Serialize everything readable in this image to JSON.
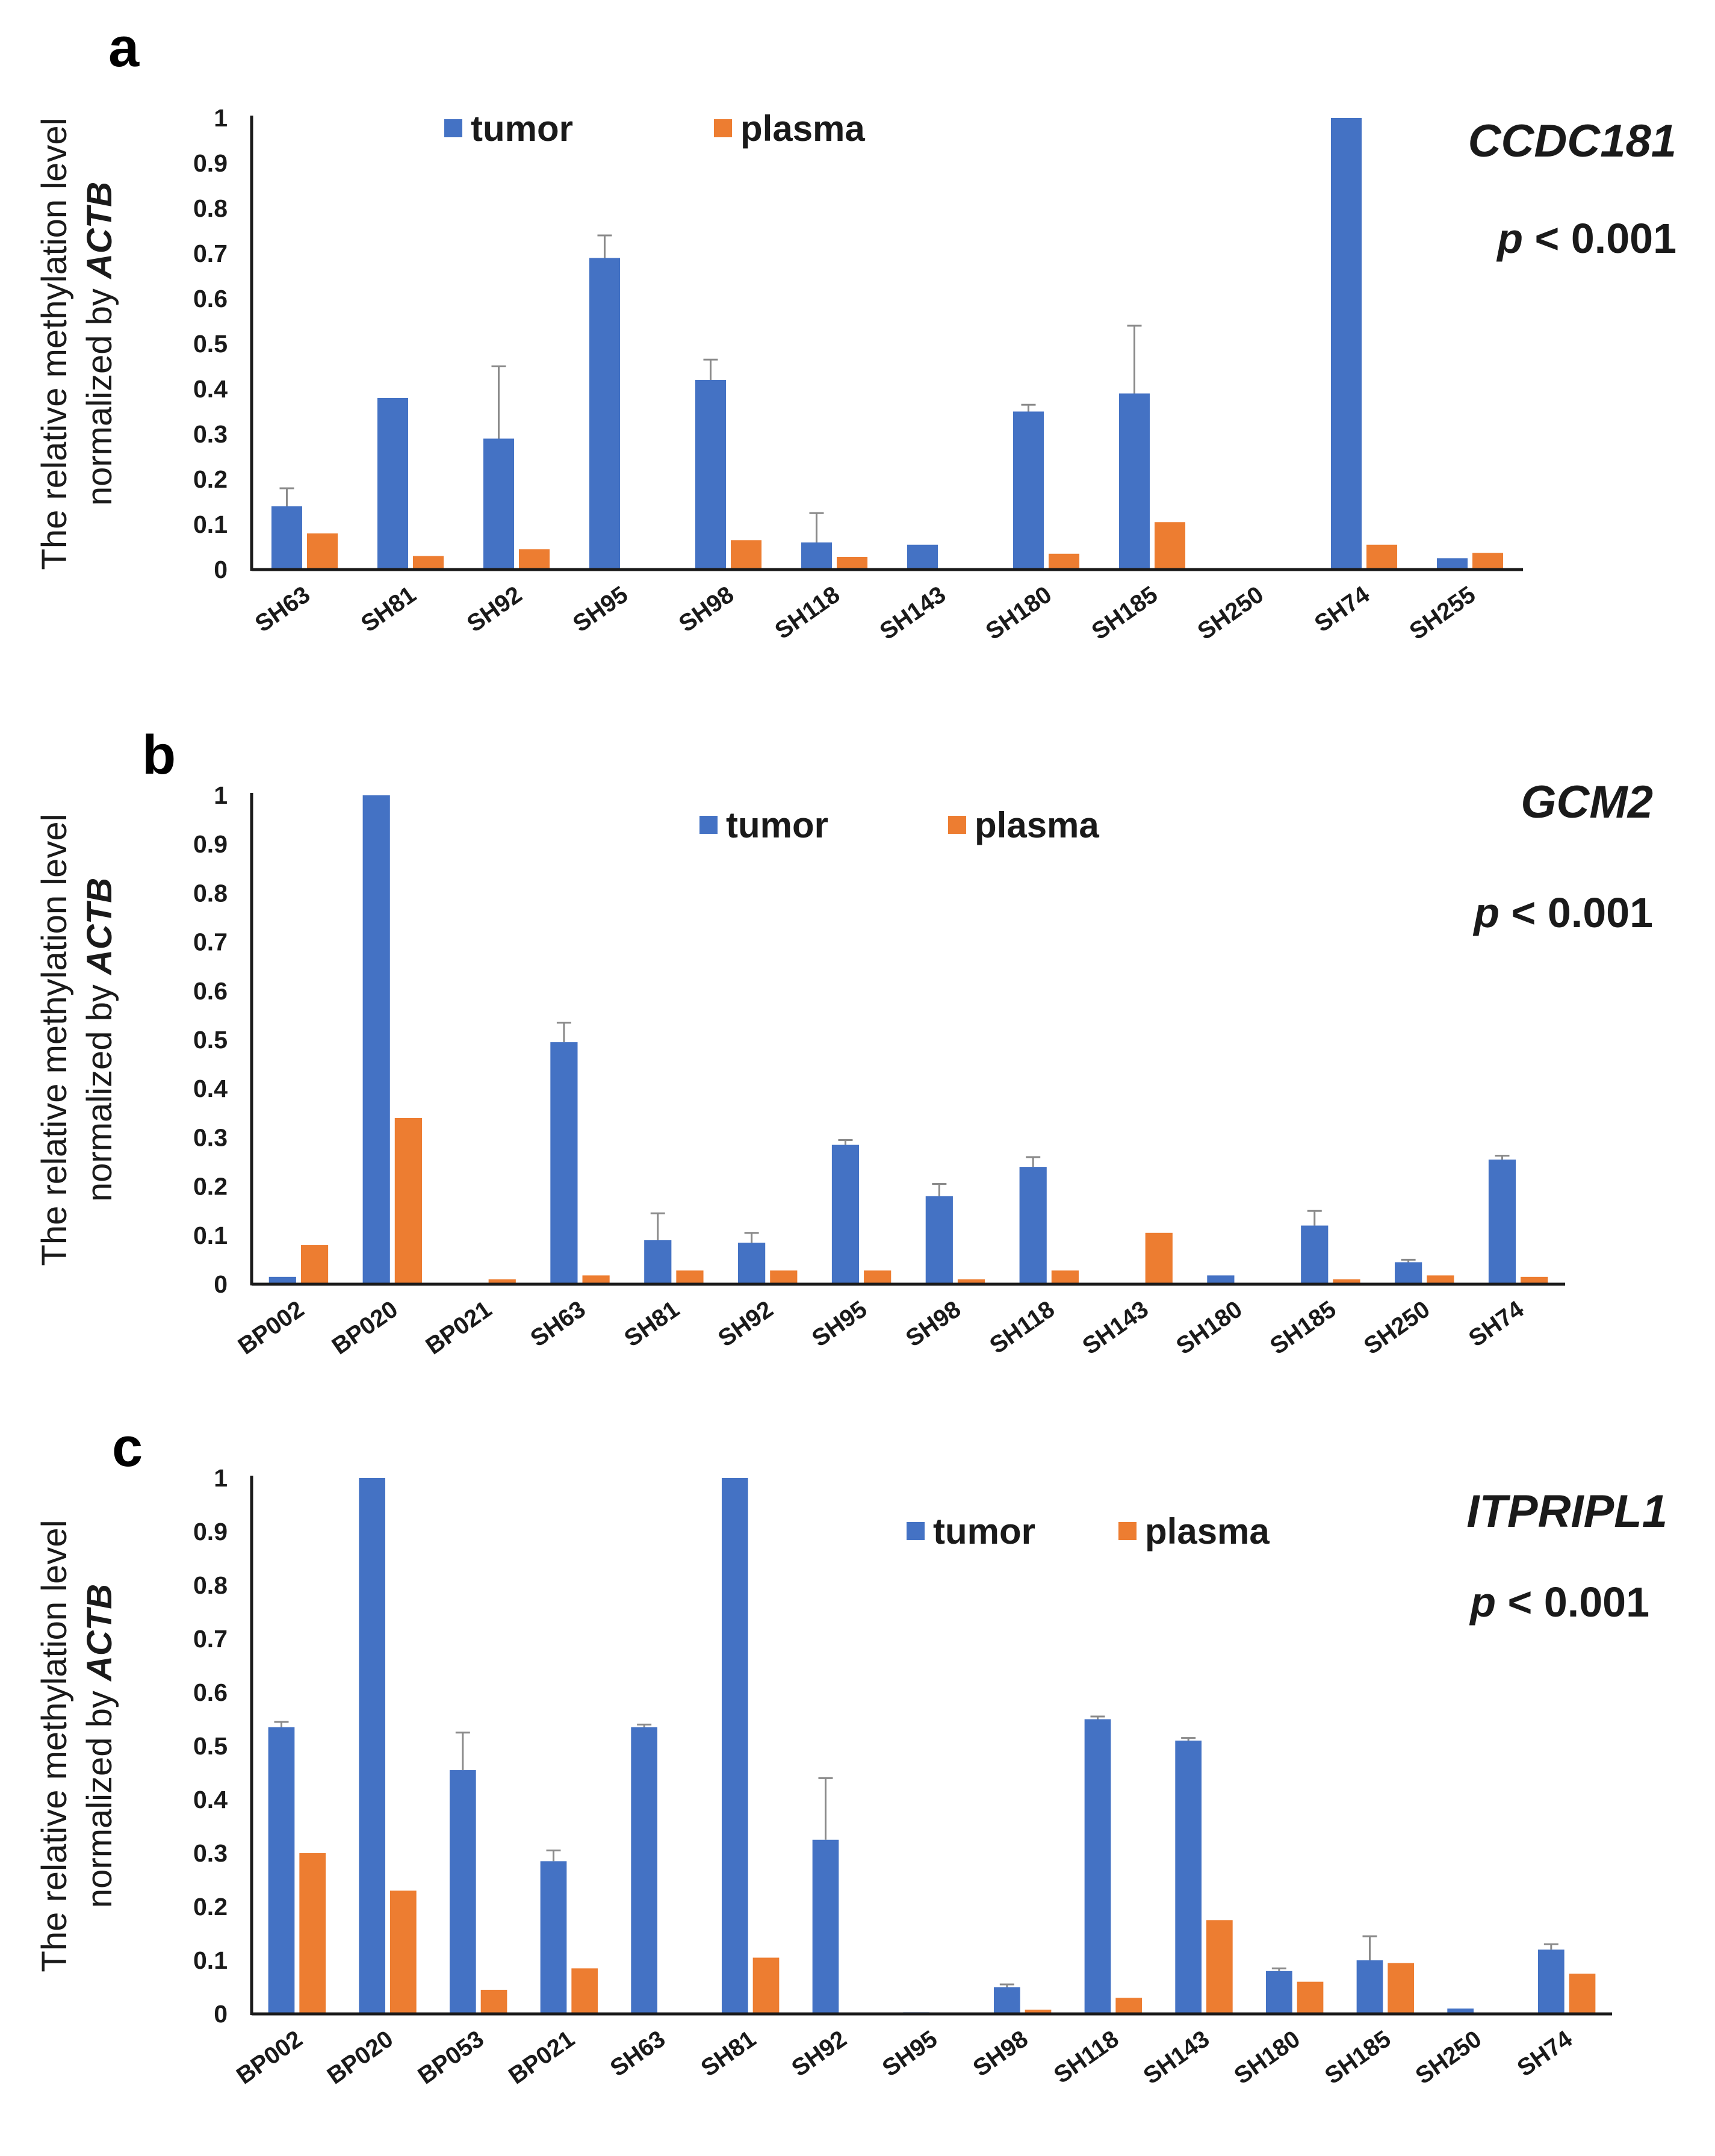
{
  "chart_data": [
    {
      "type": "bar",
      "panel_label": "a",
      "gene": "CCDC181",
      "p_text": "p",
      "p_value": "< 0.001",
      "ylabel_line1": "The relative methylation level",
      "ylabel_line2": "normalized by ",
      "ylabel_italic": "ACTB",
      "ylim": [
        0,
        1
      ],
      "yticks": [
        "0",
        "0.1",
        "0.2",
        "0.3",
        "0.4",
        "0.5",
        "0.6",
        "0.7",
        "0.8",
        "0.9",
        "1"
      ],
      "categories": [
        "SH63",
        "SH81",
        "SH92",
        "SH95",
        "SH98",
        "SH118",
        "SH143",
        "SH180",
        "SH185",
        "SH250",
        "SH74",
        "SH255"
      ],
      "series": [
        {
          "name": "tumor",
          "color": "#4472C4",
          "values": [
            0.14,
            0.38,
            0.29,
            0.69,
            0.42,
            0.06,
            0.055,
            0.35,
            0.39,
            0.003,
            1.0,
            0.025
          ],
          "errors": [
            0.04,
            0.0,
            0.16,
            0.05,
            0.045,
            0.065,
            0.0,
            0.015,
            0.15,
            0.0,
            0.0,
            0.0
          ]
        },
        {
          "name": "plasma",
          "color": "#ED7D31",
          "values": [
            0.08,
            0.03,
            0.045,
            0.0,
            0.065,
            0.028,
            0.0,
            0.035,
            0.105,
            0.0,
            0.055,
            0.037
          ],
          "errors": [
            0,
            0,
            0,
            0,
            0,
            0,
            0,
            0,
            0,
            0,
            0,
            0
          ]
        }
      ],
      "legend_position": "top-center"
    },
    {
      "type": "bar",
      "panel_label": "b",
      "gene": "GCM2",
      "p_text": "p",
      "p_value": "< 0.001",
      "ylabel_line1": "The relative methylation level",
      "ylabel_line2": "normalized by ",
      "ylabel_italic": "ACTB",
      "ylim": [
        0,
        1
      ],
      "yticks": [
        "0",
        "0.1",
        "0.2",
        "0.3",
        "0.4",
        "0.5",
        "0.6",
        "0.7",
        "0.8",
        "0.9",
        "1"
      ],
      "categories": [
        "BP002",
        "BP020",
        "BP021",
        "SH63",
        "SH81",
        "SH92",
        "SH95",
        "SH98",
        "SH118",
        "SH143",
        "SH180",
        "SH185",
        "SH250",
        "SH74"
      ],
      "series": [
        {
          "name": "tumor",
          "color": "#4472C4",
          "values": [
            0.015,
            1.0,
            0.003,
            0.495,
            0.09,
            0.085,
            0.285,
            0.18,
            0.24,
            0.003,
            0.018,
            0.12,
            0.045,
            0.255
          ],
          "errors": [
            0,
            0,
            0,
            0.04,
            0.055,
            0.02,
            0.01,
            0.025,
            0.02,
            0,
            0,
            0.03,
            0.005,
            0.008
          ]
        },
        {
          "name": "plasma",
          "color": "#ED7D31",
          "values": [
            0.08,
            0.34,
            0.01,
            0.018,
            0.028,
            0.028,
            0.028,
            0.01,
            0.028,
            0.105,
            0.0,
            0.01,
            0.018,
            0.015
          ],
          "errors": [
            0,
            0,
            0,
            0,
            0,
            0,
            0,
            0,
            0,
            0,
            0,
            0,
            0,
            0
          ]
        }
      ],
      "legend_position": "top-center"
    },
    {
      "type": "bar",
      "panel_label": "c",
      "gene": "ITPRIPL1",
      "p_text": "p",
      "p_value": "< 0.001",
      "ylabel_line1": "The relative methylation level",
      "ylabel_line2": "normalized by ",
      "ylabel_italic": "ACTB",
      "ylim": [
        0,
        1
      ],
      "yticks": [
        "0",
        "0.1",
        "0.2",
        "0.3",
        "0.4",
        "0.5",
        "0.6",
        "0.7",
        "0.8",
        "0.9",
        "1"
      ],
      "categories": [
        "BP002",
        "BP020",
        "BP053",
        "BP021",
        "SH63",
        "SH81",
        "SH92",
        "SH95",
        "SH98",
        "SH118",
        "SH143",
        "SH180",
        "SH185",
        "SH250",
        "SH74"
      ],
      "series": [
        {
          "name": "tumor",
          "color": "#4472C4",
          "values": [
            0.535,
            1.0,
            0.455,
            0.285,
            0.535,
            1.0,
            0.325,
            0.003,
            0.05,
            0.55,
            0.51,
            0.08,
            0.1,
            0.01,
            0.12
          ],
          "errors": [
            0.01,
            0,
            0.07,
            0.02,
            0.005,
            0,
            0.115,
            0,
            0.005,
            0.005,
            0.005,
            0.005,
            0.045,
            0,
            0.01
          ]
        },
        {
          "name": "plasma",
          "color": "#ED7D31",
          "values": [
            0.3,
            0.23,
            0.045,
            0.085,
            0.0,
            0.105,
            0.0,
            0.0,
            0.008,
            0.03,
            0.175,
            0.06,
            0.095,
            0.0,
            0.075
          ],
          "errors": [
            0,
            0,
            0,
            0,
            0,
            0,
            0,
            0,
            0,
            0,
            0,
            0,
            0,
            0,
            0
          ]
        }
      ],
      "legend_position": "top-right"
    }
  ]
}
